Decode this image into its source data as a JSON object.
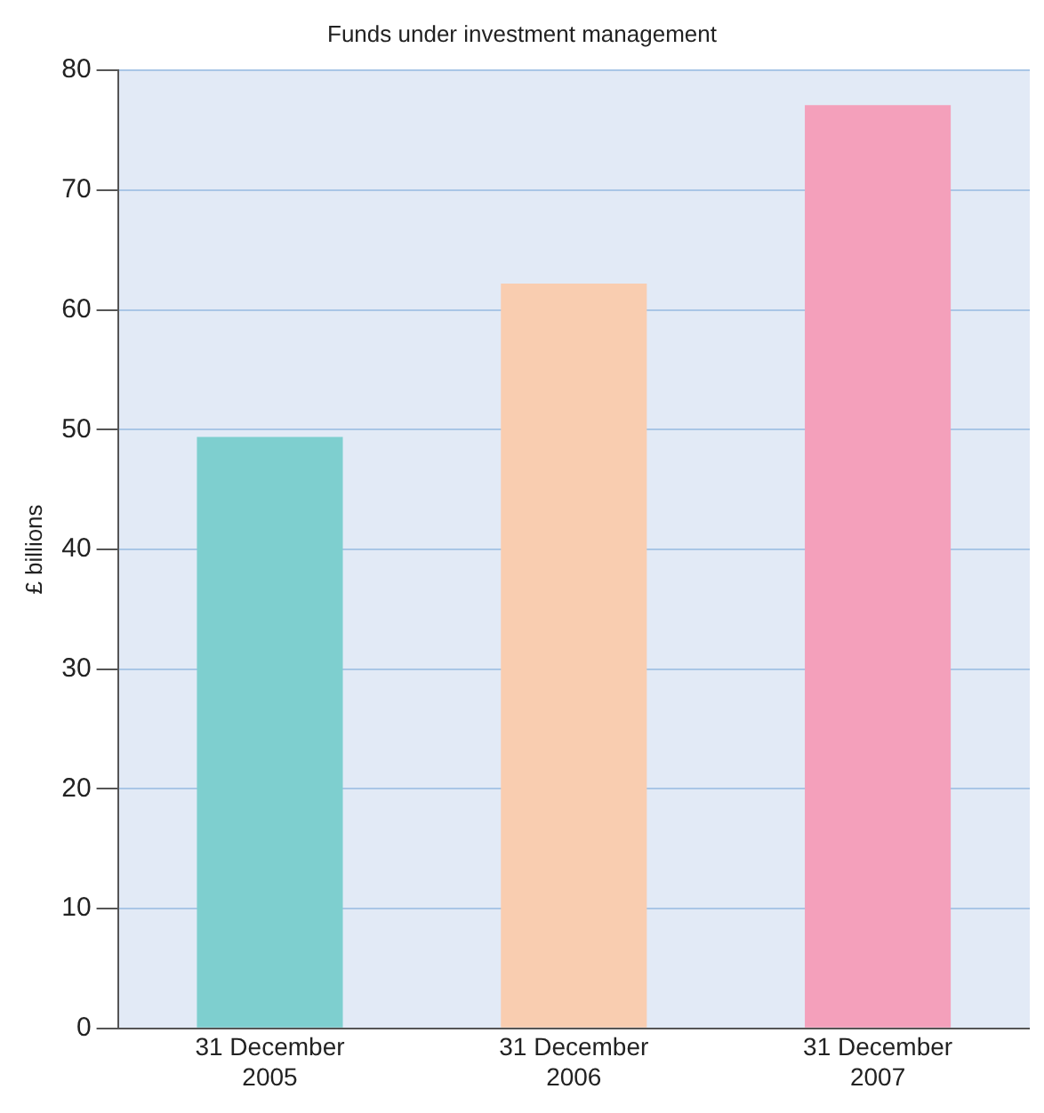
{
  "chart_data": {
    "type": "bar",
    "title": "Funds under investment management",
    "ylabel": "£ billions",
    "categories": [
      "31 December 2005",
      "31 December 2006",
      "31 December 2007"
    ],
    "values": [
      49.4,
      62.2,
      77.1
    ],
    "colors": [
      "#7ecfcf",
      "#f9cdb0",
      "#f4a0bb"
    ],
    "ylim": [
      0,
      80
    ],
    "yticks": [
      0,
      10,
      20,
      30,
      40,
      50,
      60,
      70,
      80
    ],
    "grid": "y"
  }
}
